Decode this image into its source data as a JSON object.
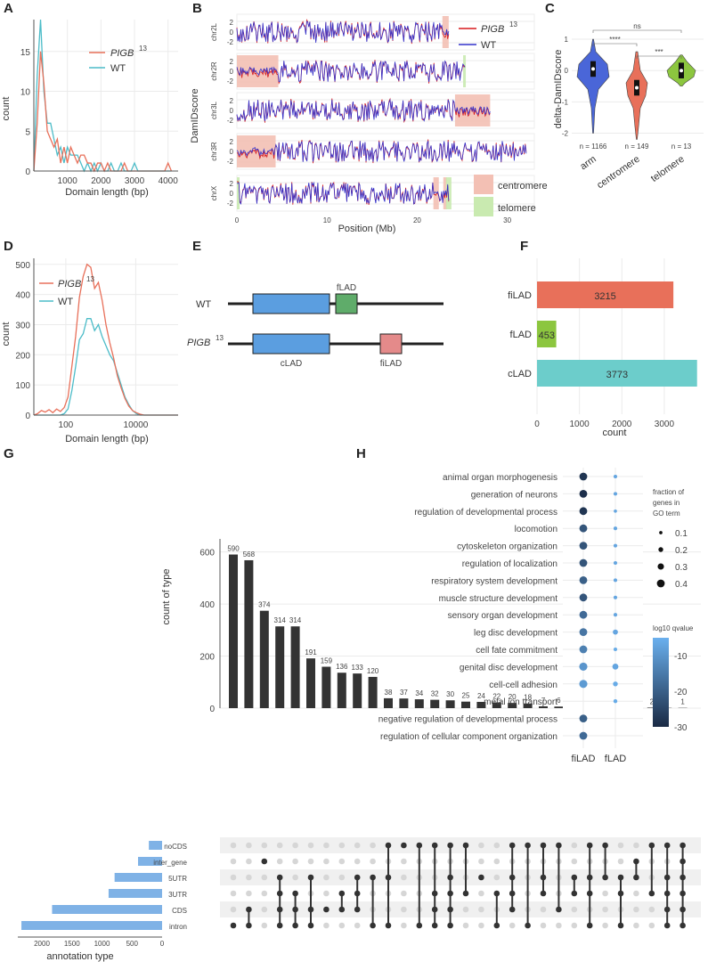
{
  "panel_labels": {
    "A": "A",
    "B": "B",
    "C": "C",
    "D": "D",
    "E": "E",
    "F": "F",
    "G": "G",
    "H": "H"
  },
  "colors": {
    "pigb": "#e8705a",
    "wt": "#4cbcc8",
    "b_pigb": "#d7191c",
    "b_wt": "#3333cc",
    "centromere": "#f3c0b4",
    "telomere": "#c9eab0",
    "arm": "#4a66d8",
    "centro_violin": "#e8705a",
    "telo_violin": "#8cc63f",
    "bar_filad": "#e8705a",
    "bar_flad": "#8cc63f",
    "bar_clad": "#6ccdcb",
    "upset_bar": "#333333",
    "set_bar": "#7fb2e6"
  },
  "legend": {
    "pigb": "PIGB",
    "pigb_sup": "13",
    "wt": "WT"
  },
  "chart_data": [
    {
      "id": "A",
      "type": "line",
      "xlabel": "Domain length (bp)",
      "ylabel": "count",
      "xlim": [
        0,
        4300
      ],
      "ylim": [
        0,
        19
      ],
      "xticks": [
        1000,
        2000,
        3000,
        4000
      ],
      "yticks": [
        0,
        5,
        10,
        15
      ],
      "series": [
        {
          "name": "PIGB13",
          "x": [
            0,
            100,
            200,
            300,
            400,
            500,
            600,
            700,
            800,
            900,
            1000,
            1100,
            1200,
            1300,
            1400,
            1500,
            1600,
            1700,
            1800,
            1900,
            2000,
            2100,
            2200,
            2300,
            2400,
            2500,
            2600,
            2700,
            2800,
            2900,
            3000,
            3100,
            3200,
            3300,
            3400,
            3500,
            3600,
            3700,
            3800,
            3900,
            4000,
            4100
          ],
          "y": [
            0,
            6,
            15,
            11,
            5,
            4,
            3,
            4,
            1,
            3,
            1,
            3,
            2,
            1,
            2,
            2,
            1,
            1,
            0,
            1,
            1,
            0,
            1,
            0,
            0,
            0,
            0,
            1,
            0,
            0,
            0,
            0,
            0,
            0,
            0,
            0,
            0,
            0,
            0,
            0,
            1,
            0
          ]
        },
        {
          "name": "WT",
          "x": [
            0,
            100,
            200,
            300,
            400,
            500,
            600,
            700,
            800,
            900,
            1000,
            1100,
            1200,
            1300,
            1400,
            1500,
            1600,
            1700,
            1800,
            1900,
            2000,
            2100,
            2200,
            2300,
            2400,
            2500,
            2600,
            2700,
            2800,
            2900,
            3000,
            3100,
            3200,
            3300,
            3400,
            3500,
            3600,
            3700,
            3800,
            3900,
            4000,
            4100
          ],
          "y": [
            0,
            12,
            19,
            10,
            6,
            6,
            4,
            2,
            3,
            1,
            3,
            2,
            2,
            2,
            1,
            0,
            1,
            0,
            1,
            0,
            1,
            0,
            0,
            1,
            0,
            0,
            1,
            0,
            0,
            0,
            1,
            0,
            0,
            0,
            0,
            0,
            0,
            0,
            0,
            0,
            0,
            0
          ]
        }
      ]
    },
    {
      "id": "B",
      "type": "line",
      "xlabel": "Position (Mb)",
      "ylabel": "DamIDscore",
      "xlim": [
        0,
        33
      ],
      "xticks": [
        0,
        10,
        20,
        30
      ],
      "tracks": [
        {
          "name": "chr2L",
          "length": 23.5,
          "centromere": [
            [
              22.8,
              23.5
            ]
          ],
          "telomere": []
        },
        {
          "name": "chr2R",
          "length": 25.3,
          "centromere": [
            [
              0,
              4.6
            ]
          ],
          "telomere": [
            [
              25.1,
              25.3
            ]
          ]
        },
        {
          "name": "chr3L",
          "length": 28.1,
          "centromere": [
            [
              24.2,
              28.1
            ]
          ],
          "telomere": []
        },
        {
          "name": "chr3R",
          "length": 32.1,
          "centromere": [
            [
              0,
              4.3
            ]
          ],
          "telomere": []
        },
        {
          "name": "chrX",
          "length": 23.5,
          "centromere": [
            [
              21.8,
              22.4
            ],
            [
              22.9,
              23.3
            ]
          ],
          "telomere": [
            [
              0,
              0.2
            ],
            [
              23.2,
              23.8
            ]
          ]
        }
      ],
      "yticks": [
        "2",
        "0",
        "-2"
      ],
      "legend": [
        "centromere",
        "telomere"
      ]
    },
    {
      "id": "C",
      "type": "violin",
      "ylabel": "delta-DamIDscore",
      "categories": [
        "arm",
        "centromere",
        "telomere"
      ],
      "n_labels": [
        "n = 1166",
        "n = 149",
        "n = 13"
      ],
      "medians": [
        0.05,
        -0.55,
        0.0
      ],
      "yticks": [
        1,
        0,
        -1,
        -2
      ],
      "comparisons": [
        {
          "pair": [
            "arm",
            "telomere"
          ],
          "label": "ns"
        },
        {
          "pair": [
            "arm",
            "centromere"
          ],
          "label": "****"
        },
        {
          "pair": [
            "centromere",
            "telomere"
          ],
          "label": "***"
        }
      ]
    },
    {
      "id": "D",
      "type": "line",
      "xlabel": "Domain length (bp)",
      "ylabel": "count",
      "xscale": "log",
      "xticks": [
        "100",
        "10000"
      ],
      "yticks": [
        0,
        100,
        200,
        300,
        400,
        500
      ],
      "ylim": [
        0,
        520
      ],
      "series": [
        {
          "name": "PIGB13",
          "x": [
            2.5,
            2.75,
            3.0,
            3.25,
            3.5,
            3.75,
            4.0,
            4.25,
            4.5,
            4.75,
            5.0,
            5.25,
            5.5,
            5.75,
            6.0,
            6.25,
            6.5,
            6.75,
            7.0,
            7.25,
            7.5,
            7.75,
            8.0,
            8.25,
            8.5,
            8.75,
            9.0,
            9.25,
            9.5,
            9.75,
            10.0,
            10.25,
            10.5,
            10.75,
            11.0,
            11.25,
            11.5,
            11.75,
            12.0
          ],
          "y": [
            0,
            5,
            15,
            10,
            18,
            8,
            20,
            12,
            25,
            60,
            160,
            260,
            390,
            460,
            500,
            490,
            420,
            440,
            380,
            300,
            240,
            190,
            130,
            90,
            55,
            30,
            15,
            8,
            3,
            0,
            0,
            0,
            0,
            0,
            0,
            0,
            0,
            0,
            0
          ]
        },
        {
          "name": "WT",
          "x": [
            2.5,
            2.75,
            3.0,
            3.25,
            3.5,
            3.75,
            4.0,
            4.25,
            4.5,
            4.75,
            5.0,
            5.25,
            5.5,
            5.75,
            6.0,
            6.25,
            6.5,
            6.75,
            7.0,
            7.25,
            7.5,
            7.75,
            8.0,
            8.25,
            8.5,
            8.75,
            9.0,
            9.25,
            9.5,
            9.75,
            10.0,
            10.25,
            10.5,
            10.75,
            11.0,
            11.25,
            11.5,
            11.75,
            12.0
          ],
          "y": [
            0,
            0,
            0,
            0,
            0,
            0,
            0,
            0,
            5,
            20,
            80,
            160,
            250,
            270,
            320,
            320,
            280,
            300,
            260,
            230,
            200,
            180,
            140,
            100,
            60,
            35,
            15,
            5,
            0,
            0,
            0,
            0,
            0,
            0,
            0,
            0,
            0,
            0,
            0
          ]
        }
      ]
    },
    {
      "id": "F",
      "type": "bar",
      "orientation": "horizontal",
      "categories": [
        "fiLAD",
        "fLAD",
        "cLAD"
      ],
      "values": [
        3215,
        453,
        3773
      ],
      "xlabel": "count",
      "xlim": [
        0,
        3800
      ],
      "xticks": [
        0,
        1000,
        2000,
        3000
      ]
    },
    {
      "id": "G",
      "type": "bar",
      "subtype": "upset",
      "ylabel": "count of type",
      "ylim": [
        0,
        650
      ],
      "yticks": [
        0,
        200,
        400,
        600
      ],
      "values": [
        590,
        568,
        374,
        314,
        314,
        191,
        159,
        136,
        133,
        120,
        38,
        37,
        34,
        32,
        30,
        25,
        24,
        22,
        20,
        18,
        7,
        6,
        5,
        5,
        4,
        3,
        2,
        2,
        1,
        1
      ],
      "sets": [
        "noCDS",
        "inter_gene",
        "5UTR",
        "3UTR",
        "CDS",
        "intron"
      ],
      "set_sizes": [
        220,
        400,
        790,
        890,
        1830,
        2340
      ],
      "set_axis_label": "annotation type",
      "set_xticks": [
        2000,
        1500,
        1000,
        500,
        0
      ],
      "intersections": [
        [
          5
        ],
        [
          4,
          5
        ],
        [
          1
        ],
        [
          2,
          3,
          4,
          5
        ],
        [
          3,
          4,
          5
        ],
        [
          2,
          4,
          5
        ],
        [
          4
        ],
        [
          3,
          4
        ],
        [
          2,
          3,
          4
        ],
        [
          2,
          5
        ],
        [
          0,
          2,
          5
        ],
        [
          0
        ],
        [
          0,
          5
        ],
        [
          0,
          3,
          4,
          5
        ],
        [
          0,
          2,
          3,
          4,
          5
        ],
        [
          0,
          3
        ],
        [
          2
        ],
        [
          3,
          5
        ],
        [
          0,
          2,
          3,
          4
        ],
        [
          0,
          5
        ],
        [
          0,
          2,
          3
        ],
        [
          0,
          4
        ],
        [
          2,
          3
        ],
        [
          0,
          2,
          3,
          5
        ],
        [
          0,
          2
        ],
        [
          2,
          3,
          5
        ],
        [
          1,
          2
        ],
        [
          0,
          3
        ],
        [
          0,
          2,
          3,
          4,
          5
        ],
        [
          0,
          1,
          2,
          3,
          4,
          5
        ]
      ]
    },
    {
      "id": "H",
      "type": "scatter",
      "subtype": "dotplot",
      "columns": [
        "fiLAD",
        "fLAD"
      ],
      "terms": [
        "animal organ morphogenesis",
        "generation of neurons",
        "regulation of developmental process",
        "locomotion",
        "cytoskeleton organization",
        "regulation of localization",
        "respiratory system development",
        "muscle structure development",
        "sensory organ development",
        "leg disc development",
        "cell fate commitment",
        "genital disc development",
        "cell-cell adhesion",
        "metal ion transport",
        "negative regulation of developmental process",
        "regulation of cellular component organization"
      ],
      "filad_size": [
        0.4,
        0.4,
        0.4,
        0.4,
        0.4,
        0.4,
        0.4,
        0.4,
        0.4,
        0.4,
        0.4,
        0.42,
        0.42,
        null,
        0.4,
        0.4
      ],
      "filad_q": [
        -28,
        -29,
        -28,
        -22,
        -22,
        -22,
        -20,
        -22,
        -18,
        -16,
        -14,
        -10,
        -9,
        null,
        -20,
        -18
      ],
      "flad_size": [
        0.12,
        0.12,
        0.1,
        0.12,
        0.12,
        0.12,
        0.12,
        0.12,
        0.12,
        0.22,
        0.12,
        0.28,
        0.2,
        0.14,
        null,
        null
      ],
      "flad_q": [
        -7,
        -7,
        -7,
        -7,
        -7,
        -7,
        -7,
        -7,
        -7,
        -7,
        -6,
        -7,
        -6,
        -6,
        null,
        null
      ],
      "size_legend_title": [
        "fraction of",
        "genes in",
        "GO term"
      ],
      "size_legend": [
        0.1,
        0.2,
        0.3,
        0.4
      ],
      "color_legend_title": "log10 qvalue",
      "color_legend_ticks": [
        -10,
        -20,
        -30
      ]
    }
  ],
  "E": {
    "wt": "WT",
    "pigb": "PIGB",
    "pigb_sup": "13",
    "clad": "cLAD",
    "flad": "fLAD",
    "filad": "fiLAD"
  }
}
